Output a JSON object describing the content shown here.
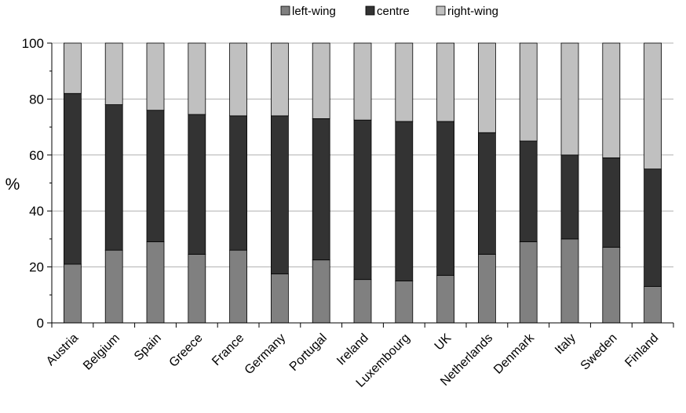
{
  "chart_data": {
    "type": "bar",
    "stacked": true,
    "title": "",
    "xlabel": "",
    "ylabel": "%",
    "ylim": [
      0,
      100
    ],
    "yticks": [
      0,
      20,
      40,
      60,
      80,
      100
    ],
    "grid": true,
    "legend_position": "top-center",
    "categories": [
      "Austria",
      "Belgium",
      "Spain",
      "Greece",
      "France",
      "Germany",
      "Portugal",
      "Ireland",
      "Luxembourg",
      "UK",
      "Netherlands",
      "Denmark",
      "Italy",
      "Sweden",
      "Finland"
    ],
    "series": [
      {
        "name": "left-wing",
        "color": "#808080",
        "values": [
          21,
          26,
          29,
          24.5,
          26,
          17.5,
          22.5,
          15.5,
          15,
          17,
          24.5,
          29,
          30,
          27,
          13
        ]
      },
      {
        "name": "centre",
        "color": "#333333",
        "values": [
          61,
          52,
          47,
          50,
          48,
          56.5,
          50.5,
          57,
          57,
          55,
          43.5,
          36,
          30,
          32,
          42
        ]
      },
      {
        "name": "right-wing",
        "color": "#c0c0c0",
        "values": [
          18,
          22,
          24,
          25.5,
          26,
          26,
          27,
          27.5,
          28,
          28,
          32,
          35,
          40,
          41,
          45
        ]
      }
    ]
  }
}
